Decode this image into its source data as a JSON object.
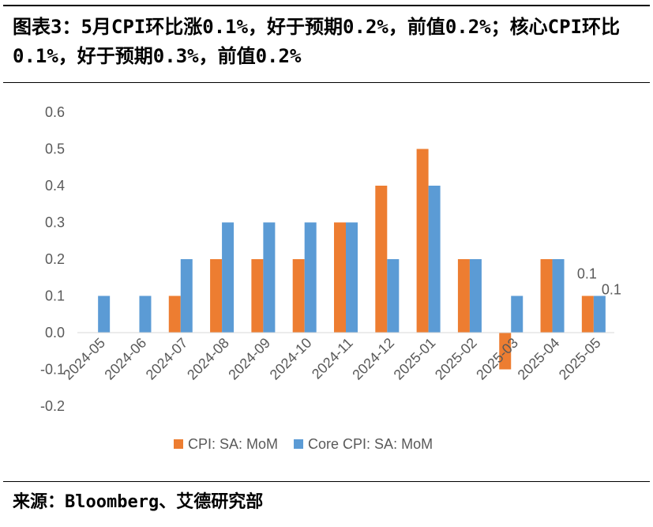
{
  "header": {
    "title": "图表3：5月CPI环比涨0.1%，好于预期0.2%，前值0.2%；核心CPI环比0.1%，好于预期0.3%，前值0.2%"
  },
  "footer": {
    "source": "来源：Bloomberg、艾德研究部"
  },
  "colors": {
    "cpi": "#ED7D31",
    "core": "#5B9BD5",
    "axis": "#D9D9D9",
    "text": "#595959"
  },
  "chart_data": {
    "type": "bar",
    "title": "",
    "xlabel": "",
    "ylabel": "",
    "ylim": [
      -0.2,
      0.6
    ],
    "yticks": [
      "-0.2",
      "-0.1",
      "0.0",
      "0.1",
      "0.2",
      "0.3",
      "0.4",
      "0.5",
      "0.6"
    ],
    "grid": false,
    "legend_position": "bottom",
    "categories": [
      "2024-05",
      "2024-06",
      "2024-07",
      "2024-08",
      "2024-09",
      "2024-10",
      "2024-11",
      "2024-12",
      "2025-01",
      "2025-02",
      "2025-03",
      "2025-04",
      "2025-05"
    ],
    "series": [
      {
        "name": "CPI: SA: MoM",
        "values": [
          0.0,
          0.0,
          0.1,
          0.2,
          0.2,
          0.2,
          0.3,
          0.4,
          0.5,
          0.2,
          -0.1,
          0.2,
          0.1
        ]
      },
      {
        "name": "Core CPI: SA: MoM",
        "values": [
          0.1,
          0.1,
          0.2,
          0.3,
          0.3,
          0.3,
          0.3,
          0.2,
          0.4,
          0.2,
          0.1,
          0.2,
          0.1
        ]
      }
    ],
    "data_labels": [
      {
        "series": 0,
        "index": 12,
        "text": "0.1"
      },
      {
        "series": 1,
        "index": 12,
        "text": "0.1"
      }
    ]
  }
}
